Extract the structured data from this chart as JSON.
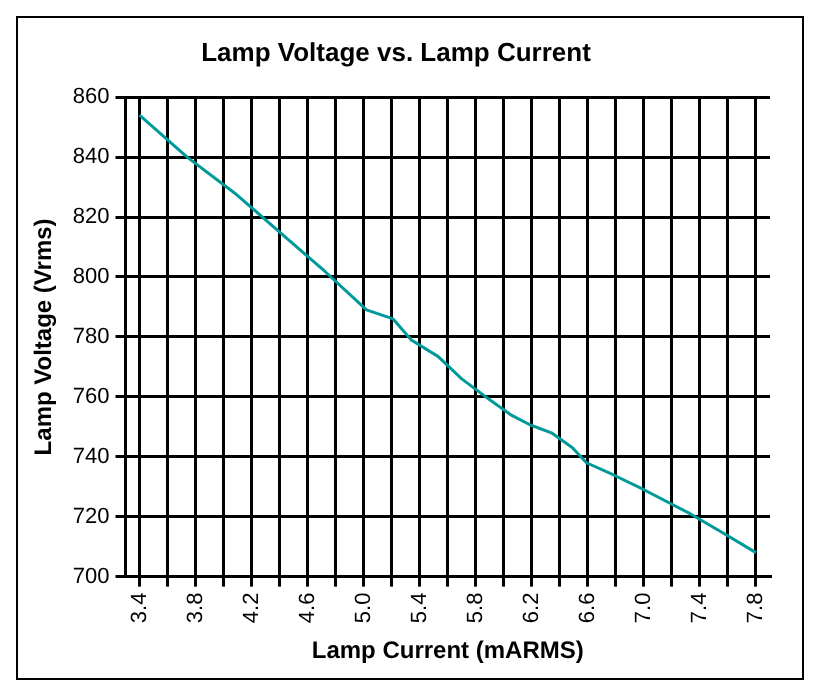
{
  "chart_data": {
    "type": "line",
    "title": "Lamp Voltage vs. Lamp Current",
    "xlabel": "Lamp Current (mARMS)",
    "ylabel": "Lamp Voltage (Vrms)",
    "x": [
      3.4,
      3.74,
      4.09,
      4.4,
      4.72,
      5.02,
      5.21,
      5.34,
      5.53,
      5.7,
      5.9,
      6.05,
      6.19,
      6.34,
      6.49,
      6.59,
      6.78,
      7.0,
      7.33,
      7.55,
      7.8
    ],
    "series": [
      {
        "color": "#009999",
        "values": [
          854,
          840,
          827.6,
          815,
          802,
          789,
          786,
          779,
          773.5,
          766,
          759,
          754,
          750.6,
          748,
          743,
          738,
          734,
          729,
          721,
          715,
          708
        ]
      }
    ],
    "xlim": [
      3.3,
      7.9
    ],
    "xticks": [
      3.4,
      {
        "value": 3.6,
        "label": null
      },
      3.8,
      {
        "value": 4.0,
        "label": null
      },
      4.2,
      {
        "value": 4.4,
        "label": null
      },
      4.6,
      {
        "value": 4.8,
        "label": null
      },
      "5.0",
      {
        "value": 5.2,
        "label": null
      },
      5.4,
      {
        "value": 5.6,
        "label": null
      },
      5.8,
      {
        "value": 6.0,
        "label": null
      },
      6.2,
      {
        "value": 6.4,
        "label": null
      },
      6.6,
      {
        "value": 6.8,
        "label": null
      },
      "7.0",
      {
        "value": 7.2,
        "label": null
      },
      7.4,
      {
        "value": 7.6,
        "label": null
      },
      7.8
    ],
    "ylim": [
      700,
      860
    ],
    "yticks": [
      700,
      720,
      740,
      760,
      780,
      800,
      820,
      840,
      860
    ],
    "grid": true,
    "legend": false,
    "marker": "none",
    "line_style": "solid"
  }
}
